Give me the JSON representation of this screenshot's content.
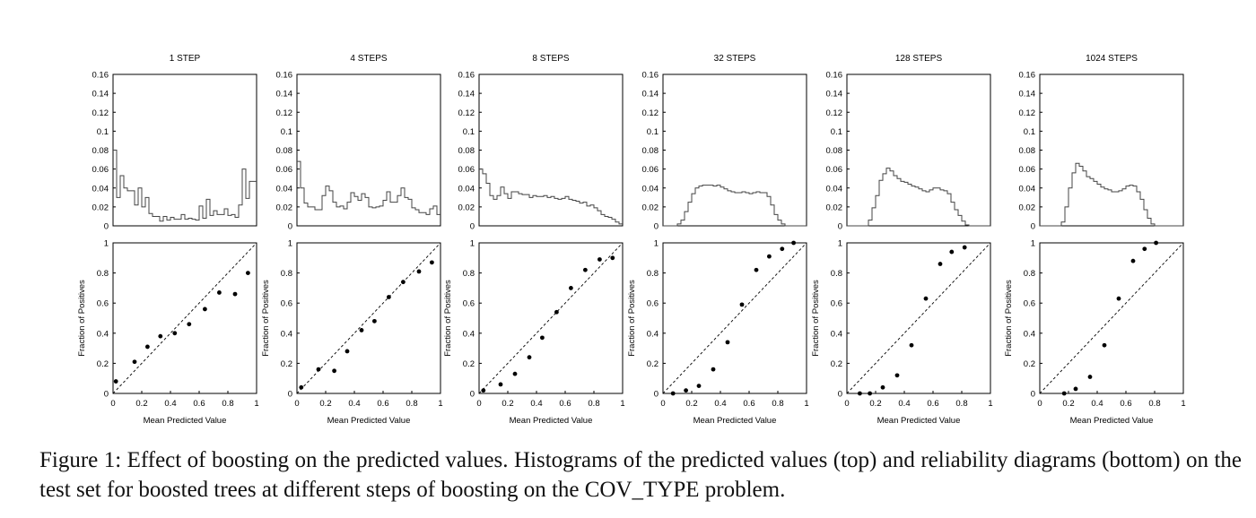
{
  "caption": "Figure 1: Effect of boosting on the predicted values. Histograms of the predicted values (top) and reliability diagrams (bottom) on the test set for boosted trees at different steps of boosting on the COV_TYPE problem.",
  "chart_data": [
    {
      "type": "bar",
      "title": "1 STEP",
      "panel": "histogram",
      "xlim": [
        0,
        1
      ],
      "ylim": [
        0,
        0.16
      ],
      "yticks": [
        "0",
        "0.02",
        "0.04",
        "0.06",
        "0.08",
        "0.1",
        "0.12",
        "0.14",
        "0.16"
      ],
      "values": [
        0.08,
        0.03,
        0.053,
        0.04,
        0.037,
        0.037,
        0.022,
        0.04,
        0.02,
        0.03,
        0.013,
        0.01,
        0.01,
        0.005,
        0.01,
        0.006,
        0.009,
        0.007,
        0.007,
        0.012,
        0.007,
        0.008,
        0.007,
        0.006,
        0.021,
        0.008,
        0.028,
        0.011,
        0.016,
        0.012,
        0.012,
        0.018,
        0.011,
        0.012,
        0.009,
        0.022,
        0.06,
        0.029,
        0.047,
        0.047
      ]
    },
    {
      "type": "bar",
      "title": "4 STEPS",
      "panel": "histogram",
      "xlim": [
        0,
        1
      ],
      "ylim": [
        0,
        0.16
      ],
      "yticks": [
        "0",
        "0.02",
        "0.04",
        "0.06",
        "0.08",
        "0.1",
        "0.12",
        "0.14",
        "0.16"
      ],
      "values": [
        0.068,
        0.04,
        0.024,
        0.02,
        0.02,
        0.017,
        0.017,
        0.032,
        0.042,
        0.037,
        0.025,
        0.02,
        0.021,
        0.018,
        0.025,
        0.035,
        0.031,
        0.027,
        0.034,
        0.03,
        0.02,
        0.019,
        0.02,
        0.021,
        0.027,
        0.036,
        0.025,
        0.025,
        0.032,
        0.04,
        0.03,
        0.028,
        0.019,
        0.017,
        0.014,
        0.014,
        0.012,
        0.018,
        0.021,
        0.012
      ]
    },
    {
      "type": "bar",
      "title": "8 STEPS",
      "panel": "histogram",
      "xlim": [
        0,
        1
      ],
      "ylim": [
        0,
        0.16
      ],
      "yticks": [
        "0",
        "0.02",
        "0.04",
        "0.06",
        "0.08",
        "0.1",
        "0.12",
        "0.14",
        "0.16"
      ],
      "values": [
        0.06,
        0.055,
        0.045,
        0.032,
        0.028,
        0.032,
        0.041,
        0.034,
        0.029,
        0.036,
        0.036,
        0.034,
        0.033,
        0.033,
        0.03,
        0.032,
        0.031,
        0.031,
        0.032,
        0.03,
        0.031,
        0.029,
        0.028,
        0.029,
        0.031,
        0.028,
        0.027,
        0.026,
        0.024,
        0.025,
        0.021,
        0.022,
        0.019,
        0.016,
        0.012,
        0.01,
        0.009,
        0.007,
        0.004,
        0.002
      ]
    },
    {
      "type": "bar",
      "title": "32 STEPS",
      "panel": "histogram",
      "xlim": [
        0,
        1
      ],
      "ylim": [
        0,
        0.16
      ],
      "yticks": [
        "0",
        "0.02",
        "0.04",
        "0.06",
        "0.08",
        "0.1",
        "0.12",
        "0.14",
        "0.16"
      ],
      "values": [
        0,
        0,
        0,
        0,
        0.002,
        0.006,
        0.015,
        0.025,
        0.034,
        0.04,
        0.042,
        0.043,
        0.043,
        0.043,
        0.042,
        0.043,
        0.041,
        0.039,
        0.037,
        0.036,
        0.035,
        0.035,
        0.036,
        0.035,
        0.034,
        0.035,
        0.036,
        0.035,
        0.035,
        0.031,
        0.022,
        0.012,
        0.006,
        0.002,
        0,
        0,
        0,
        0,
        0,
        0
      ]
    },
    {
      "type": "bar",
      "title": "128 STEPS",
      "panel": "histogram",
      "xlim": [
        0,
        1
      ],
      "ylim": [
        0,
        0.16
      ],
      "yticks": [
        "0",
        "0.02",
        "0.04",
        "0.06",
        "0.08",
        "0.1",
        "0.12",
        "0.14",
        "0.16"
      ],
      "values": [
        0,
        0,
        0,
        0,
        0,
        0,
        0.006,
        0.019,
        0.032,
        0.048,
        0.055,
        0.061,
        0.058,
        0.053,
        0.05,
        0.047,
        0.046,
        0.044,
        0.042,
        0.041,
        0.039,
        0.037,
        0.036,
        0.038,
        0.04,
        0.04,
        0.038,
        0.037,
        0.034,
        0.025,
        0.017,
        0.011,
        0.005,
        0.001,
        0,
        0,
        0,
        0,
        0,
        0
      ]
    },
    {
      "type": "bar",
      "title": "1024 STEPS",
      "panel": "histogram",
      "xlim": [
        0,
        1
      ],
      "ylim": [
        0,
        0.16
      ],
      "yticks": [
        "0",
        "0.02",
        "0.04",
        "0.06",
        "0.08",
        "0.1",
        "0.12",
        "0.14",
        "0.16"
      ],
      "values": [
        0,
        0,
        0,
        0,
        0,
        0,
        0.004,
        0.02,
        0.04,
        0.056,
        0.066,
        0.063,
        0.058,
        0.052,
        0.05,
        0.047,
        0.044,
        0.041,
        0.039,
        0.038,
        0.036,
        0.036,
        0.037,
        0.039,
        0.042,
        0.043,
        0.042,
        0.036,
        0.028,
        0.017,
        0.008,
        0.002,
        0,
        0,
        0,
        0,
        0,
        0,
        0,
        0
      ]
    },
    {
      "type": "scatter",
      "panel": "reliability",
      "xlabel": "Mean Predicted Value",
      "ylabel": "Fraction of Positives",
      "xlim": [
        0,
        1
      ],
      "ylim": [
        0,
        1
      ],
      "xticks": [
        "0",
        "0.2",
        "0.4",
        "0.6",
        "0.8",
        "1"
      ],
      "yticks": [
        "0",
        "0.2",
        "0.4",
        "0.6",
        "0.8",
        "1"
      ],
      "x": [
        0.02,
        0.15,
        0.24,
        0.33,
        0.43,
        0.53,
        0.64,
        0.74,
        0.85,
        0.94
      ],
      "y": [
        0.08,
        0.21,
        0.31,
        0.38,
        0.4,
        0.46,
        0.56,
        0.67,
        0.66,
        0.8
      ]
    },
    {
      "type": "scatter",
      "panel": "reliability",
      "xlabel": "Mean Predicted Value",
      "ylabel": "Fraction of Positives",
      "xlim": [
        0,
        1
      ],
      "ylim": [
        0,
        1
      ],
      "xticks": [
        "0",
        "0.2",
        "0.4",
        "0.6",
        "0.8",
        "1"
      ],
      "yticks": [
        "0",
        "0.2",
        "0.4",
        "0.6",
        "0.8",
        "1"
      ],
      "x": [
        0.03,
        0.15,
        0.26,
        0.35,
        0.45,
        0.54,
        0.64,
        0.74,
        0.85,
        0.94
      ],
      "y": [
        0.04,
        0.16,
        0.15,
        0.28,
        0.42,
        0.48,
        0.64,
        0.74,
        0.81,
        0.87
      ]
    },
    {
      "type": "scatter",
      "panel": "reliability",
      "xlabel": "Mean Predicted Value",
      "ylabel": "Fraction of Positives",
      "xlim": [
        0,
        1
      ],
      "ylim": [
        0,
        1
      ],
      "xticks": [
        "0",
        "0.2",
        "0.4",
        "0.6",
        "0.8",
        "1"
      ],
      "yticks": [
        "0",
        "0.2",
        "0.4",
        "0.6",
        "0.8",
        "1"
      ],
      "x": [
        0.03,
        0.15,
        0.25,
        0.35,
        0.44,
        0.54,
        0.64,
        0.74,
        0.84,
        0.93
      ],
      "y": [
        0.02,
        0.06,
        0.13,
        0.24,
        0.37,
        0.54,
        0.7,
        0.82,
        0.89,
        0.9
      ]
    },
    {
      "type": "scatter",
      "panel": "reliability",
      "xlabel": "Mean Predicted Value",
      "ylabel": "Fraction of Positives",
      "xlim": [
        0,
        1
      ],
      "ylim": [
        0,
        1
      ],
      "xticks": [
        "0",
        "0.2",
        "0.4",
        "0.6",
        "0.8",
        "1"
      ],
      "yticks": [
        "0",
        "0.2",
        "0.4",
        "0.6",
        "0.8",
        "1"
      ],
      "x": [
        0.07,
        0.16,
        0.25,
        0.35,
        0.45,
        0.55,
        0.65,
        0.74,
        0.83,
        0.91
      ],
      "y": [
        0,
        0.02,
        0.05,
        0.16,
        0.34,
        0.59,
        0.82,
        0.91,
        0.96,
        1.0
      ]
    },
    {
      "type": "scatter",
      "panel": "reliability",
      "xlabel": "Mean Predicted Value",
      "ylabel": "Fraction of Positives",
      "xlim": [
        0,
        1
      ],
      "ylim": [
        0,
        1
      ],
      "xticks": [
        "0",
        "0.2",
        "0.4",
        "0.6",
        "0.8",
        "1"
      ],
      "yticks": [
        "0",
        "0.2",
        "0.4",
        "0.6",
        "0.8",
        "1"
      ],
      "x": [
        0.09,
        0.16,
        0.25,
        0.35,
        0.45,
        0.55,
        0.65,
        0.73,
        0.82
      ],
      "y": [
        0,
        0,
        0.04,
        0.12,
        0.32,
        0.63,
        0.86,
        0.94,
        0.97
      ]
    },
    {
      "type": "scatter",
      "panel": "reliability",
      "xlabel": "Mean Predicted Value",
      "ylabel": "Fraction of Positives",
      "xlim": [
        0,
        1
      ],
      "ylim": [
        0,
        1
      ],
      "xticks": [
        "0",
        "0.2",
        "0.4",
        "0.6",
        "0.8",
        "1"
      ],
      "yticks": [
        "0",
        "0.2",
        "0.4",
        "0.6",
        "0.8",
        "1"
      ],
      "x": [
        0.17,
        0.25,
        0.35,
        0.45,
        0.55,
        0.65,
        0.73,
        0.81
      ],
      "y": [
        0,
        0.03,
        0.11,
        0.32,
        0.63,
        0.88,
        0.96,
        1.0
      ]
    }
  ]
}
